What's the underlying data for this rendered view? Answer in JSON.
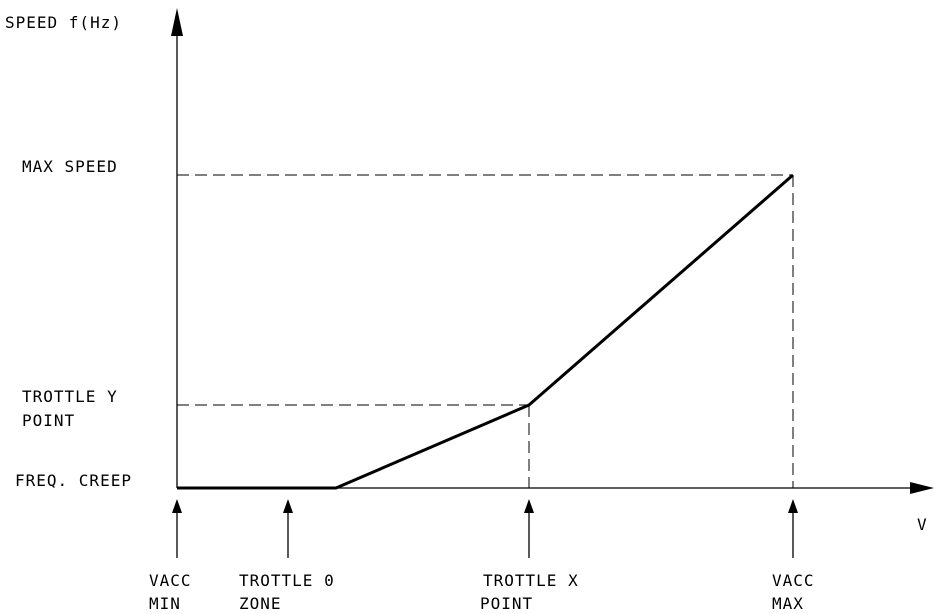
{
  "y_axis_label": "SPEED f(Hz)",
  "x_axis_label": "V",
  "y_labels": {
    "max_speed": "MAX SPEED",
    "trottle_y_line1": "TROTTLE Y",
    "trottle_y_line2": "POINT",
    "freq_creep": "FREQ. CREEP"
  },
  "x_labels": {
    "vacc_min_line1": "VACC",
    "vacc_min_line2": "MIN",
    "trottle_0_line1": "TROTTLE 0",
    "trottle_0_line2": "ZONE",
    "trottle_x_line1": "TROTTLE X",
    "trottle_x_line2": "POINT",
    "vacc_max_line1": "VACC",
    "vacc_max_line2": "MAX"
  },
  "colors": {
    "ink": "#000000",
    "background": "#ffffff"
  }
}
